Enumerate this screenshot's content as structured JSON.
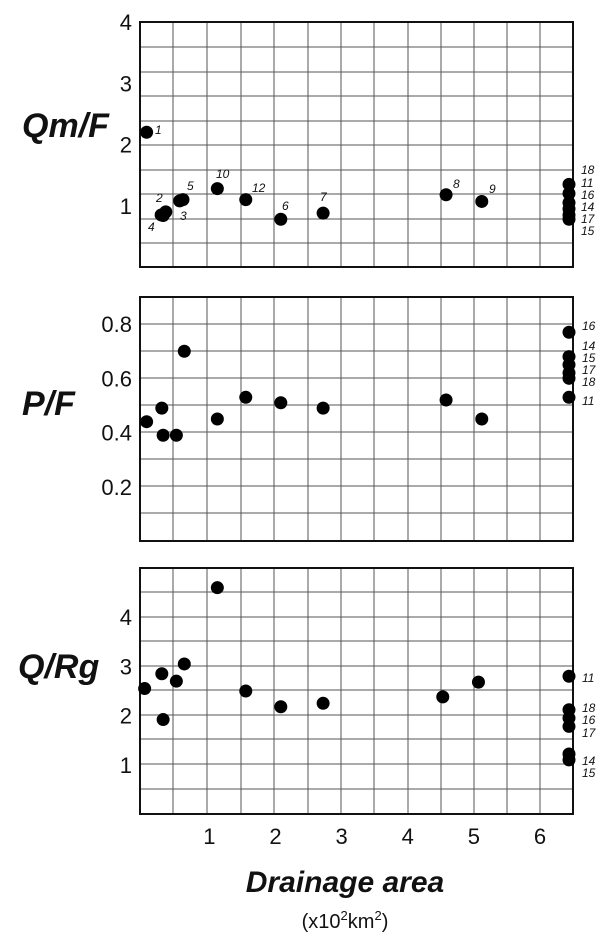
{
  "chart_data": [
    {
      "type": "scatter",
      "ylabel": "Qm/F",
      "xlim": [
        -0.05,
        6.5
      ],
      "ylim": [
        0,
        4
      ],
      "y_ticks": [
        1,
        2,
        3,
        4
      ],
      "grid": true,
      "points": [
        {
          "x": 0.05,
          "y": 2.2,
          "label": "1"
        },
        {
          "x": 0.27,
          "y": 0.85,
          "label": "2"
        },
        {
          "x": 0.34,
          "y": 0.9,
          "label": "3"
        },
        {
          "x": 0.3,
          "y": 0.84,
          "label": "4"
        },
        {
          "x": 0.6,
          "y": 1.1,
          "label": "5"
        },
        {
          "x": 0.55,
          "y": 1.08,
          "label": "3"
        },
        {
          "x": 1.12,
          "y": 1.28,
          "label": "10"
        },
        {
          "x": 1.55,
          "y": 1.1,
          "label": "12"
        },
        {
          "x": 2.08,
          "y": 0.78,
          "label": "6"
        },
        {
          "x": 2.72,
          "y": 0.88,
          "label": "7"
        },
        {
          "x": 4.58,
          "y": 1.18,
          "label": "8"
        },
        {
          "x": 5.12,
          "y": 1.07,
          "label": "9"
        },
        {
          "x": 6.45,
          "y": 1.35,
          "label": "18"
        },
        {
          "x": 6.45,
          "y": 1.2,
          "label": "11"
        },
        {
          "x": 6.45,
          "y": 1.05,
          "label": "16"
        },
        {
          "x": 6.45,
          "y": 0.95,
          "label": "14"
        },
        {
          "x": 6.45,
          "y": 0.85,
          "label": "17"
        },
        {
          "x": 6.45,
          "y": 0.78,
          "label": "15"
        }
      ],
      "side_labels": [
        "18",
        "11",
        "16",
        "14",
        "17",
        "15"
      ]
    },
    {
      "type": "scatter",
      "ylabel": "P/F",
      "xlim": [
        -0.05,
        6.5
      ],
      "ylim": [
        0,
        0.9
      ],
      "y_ticks": [
        0.2,
        0.4,
        0.6,
        0.8
      ],
      "grid": true,
      "points": [
        {
          "x": 0.05,
          "y": 0.44
        },
        {
          "x": 0.28,
          "y": 0.49
        },
        {
          "x": 0.3,
          "y": 0.39
        },
        {
          "x": 0.5,
          "y": 0.39
        },
        {
          "x": 0.62,
          "y": 0.7
        },
        {
          "x": 1.12,
          "y": 0.45
        },
        {
          "x": 1.55,
          "y": 0.53
        },
        {
          "x": 2.08,
          "y": 0.51
        },
        {
          "x": 2.72,
          "y": 0.49
        },
        {
          "x": 4.58,
          "y": 0.52
        },
        {
          "x": 5.12,
          "y": 0.45
        },
        {
          "x": 6.45,
          "y": 0.77
        },
        {
          "x": 6.45,
          "y": 0.68
        },
        {
          "x": 6.45,
          "y": 0.65
        },
        {
          "x": 6.45,
          "y": 0.62
        },
        {
          "x": 6.45,
          "y": 0.6
        },
        {
          "x": 6.45,
          "y": 0.53
        }
      ],
      "side_labels": [
        "16",
        "14",
        "15",
        "17",
        "18",
        "11"
      ]
    },
    {
      "type": "scatter",
      "ylabel": "Q/Rg",
      "xlabel": "Drainage area",
      "xunit_main": "(x10",
      "xunit_sup1": "2",
      "xunit_mid": "km",
      "xunit_sup2": "2",
      "xunit_end": ")",
      "xlim": [
        -0.05,
        6.5
      ],
      "ylim": [
        0,
        5
      ],
      "y_ticks": [
        1,
        2,
        3,
        4
      ],
      "x_ticks": [
        1,
        2,
        3,
        4,
        5,
        6
      ],
      "grid": true,
      "points": [
        {
          "x": 0.02,
          "y": 2.55
        },
        {
          "x": 0.28,
          "y": 2.85
        },
        {
          "x": 0.3,
          "y": 1.92
        },
        {
          "x": 0.5,
          "y": 2.7
        },
        {
          "x": 0.62,
          "y": 3.05
        },
        {
          "x": 1.12,
          "y": 4.6
        },
        {
          "x": 1.55,
          "y": 2.5
        },
        {
          "x": 2.08,
          "y": 2.18
        },
        {
          "x": 2.72,
          "y": 2.25
        },
        {
          "x": 4.53,
          "y": 2.38
        },
        {
          "x": 5.07,
          "y": 2.68
        },
        {
          "x": 6.45,
          "y": 2.8
        },
        {
          "x": 6.45,
          "y": 2.12
        },
        {
          "x": 6.45,
          "y": 1.95
        },
        {
          "x": 6.45,
          "y": 1.78
        },
        {
          "x": 6.45,
          "y": 1.22
        },
        {
          "x": 6.45,
          "y": 1.1
        }
      ],
      "side_labels": [
        "11",
        "18",
        "16",
        "17",
        "14",
        "15"
      ]
    }
  ]
}
